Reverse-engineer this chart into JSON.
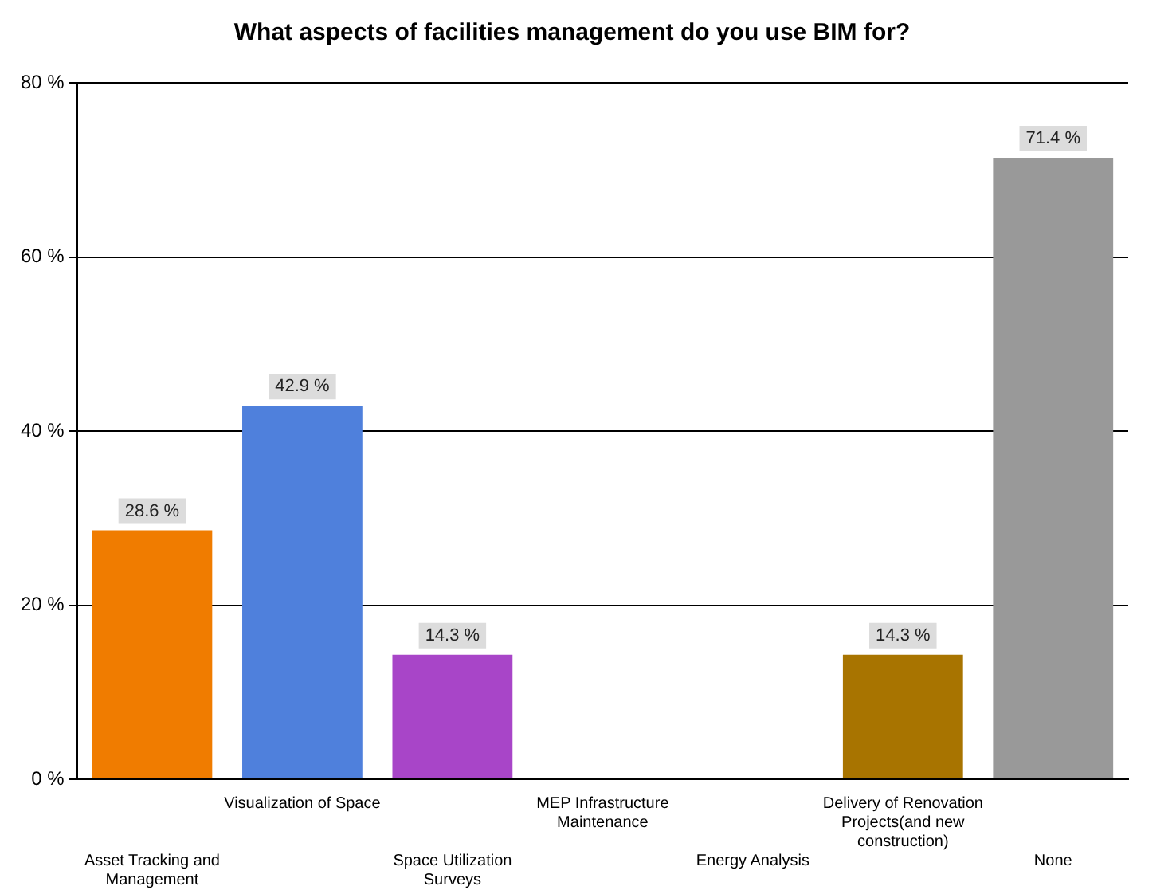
{
  "chart_data": {
    "type": "bar",
    "title": "What aspects of facilities management do you use BIM for?",
    "categories": [
      "Asset Tracking and Management",
      "Visualization of Space",
      "Space Utilization Surveys",
      "MEP Infrastructure Maintenance",
      "Energy Analysis",
      "Delivery of Renovation Projects(and new construction)",
      "None"
    ],
    "values": [
      28.6,
      42.9,
      14.3,
      0,
      0,
      14.3,
      71.4
    ],
    "colors": [
      "#f07c00",
      "#4f80dc",
      "#a845c8",
      "#f07c00",
      "#4f80dc",
      "#a87400",
      "#999999"
    ],
    "value_labels": [
      "28.6 %",
      "42.9 %",
      "14.3 %",
      null,
      null,
      "14.3 %",
      "71.4 %"
    ],
    "ylim": [
      0,
      80
    ],
    "yticks": [
      {
        "value": 0,
        "label": "0 %"
      },
      {
        "value": 20,
        "label": "20 %"
      },
      {
        "value": 40,
        "label": "40 %"
      },
      {
        "value": 60,
        "label": "60 %"
      },
      {
        "value": 80,
        "label": "80 %"
      }
    ],
    "grid": "y",
    "legend": false
  }
}
